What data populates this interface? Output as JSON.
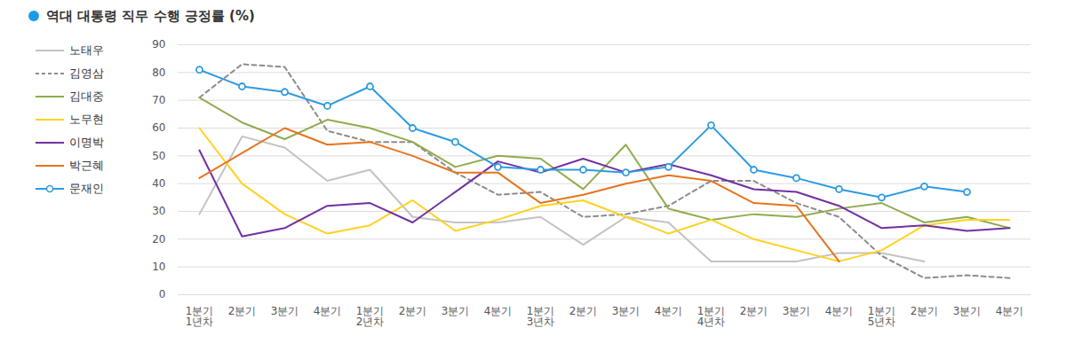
{
  "chart_data": {
    "type": "line",
    "title": "역대 대통령 직무 수행 긍정률 (%)",
    "categories": [
      "1분기\n1년차",
      "2분기",
      "3분기",
      "4분기",
      "1분기\n2년차",
      "2분기",
      "3분기",
      "4분기",
      "1분기\n3년차",
      "2분기",
      "3분기",
      "4분기",
      "1분기\n4년차",
      "2분기",
      "3분기",
      "4분기",
      "1분기\n5년차",
      "2분기",
      "3분기",
      "4분기"
    ],
    "ylim": [
      0,
      90
    ],
    "yticks": [
      0,
      10,
      20,
      30,
      40,
      50,
      60,
      70,
      80,
      90
    ],
    "grid": true,
    "legend": "left",
    "series": [
      {
        "name": "노태우",
        "color": "#c3c3c3",
        "values": [
          29,
          57,
          53,
          41,
          45,
          28,
          26,
          26,
          28,
          18,
          28,
          26,
          12,
          12,
          12,
          15,
          15,
          12,
          null,
          null
        ]
      },
      {
        "name": "김영삼",
        "color": "#8c8c8c",
        "line_style": "dashed",
        "values": [
          71,
          83,
          82,
          59,
          55,
          55,
          44,
          36,
          37,
          28,
          29,
          32,
          41,
          41,
          33,
          28,
          14,
          6,
          7,
          6
        ]
      },
      {
        "name": "김대중",
        "color": "#8fac4e",
        "values": [
          71,
          62,
          56,
          63,
          60,
          55,
          46,
          50,
          49,
          38,
          54,
          31,
          27,
          29,
          28,
          31,
          33,
          26,
          28,
          24
        ]
      },
      {
        "name": "노무현",
        "color": "#ffd21f",
        "values": [
          60,
          40,
          29,
          22,
          25,
          34,
          23,
          27,
          32,
          34,
          28,
          22,
          27,
          20,
          16,
          12,
          16,
          25,
          27,
          27
        ]
      },
      {
        "name": "이명박",
        "color": "#7030a0",
        "values": [
          52,
          21,
          24,
          32,
          33,
          26,
          37,
          48,
          44,
          49,
          44,
          47,
          43,
          38,
          37,
          32,
          24,
          25,
          23,
          24
        ]
      },
      {
        "name": "박근혜",
        "color": "#e8731c",
        "values": [
          42,
          51,
          60,
          54,
          55,
          50,
          44,
          44,
          33,
          36,
          40,
          43,
          41,
          33,
          32,
          12,
          null,
          null,
          null,
          null
        ]
      },
      {
        "name": "문재인",
        "color": "#2e9be0",
        "marker": "circle",
        "values": [
          81,
          75,
          73,
          68,
          75,
          60,
          55,
          46,
          45,
          45,
          44,
          46,
          61,
          45,
          42,
          38,
          35,
          39,
          37,
          null
        ]
      }
    ]
  }
}
